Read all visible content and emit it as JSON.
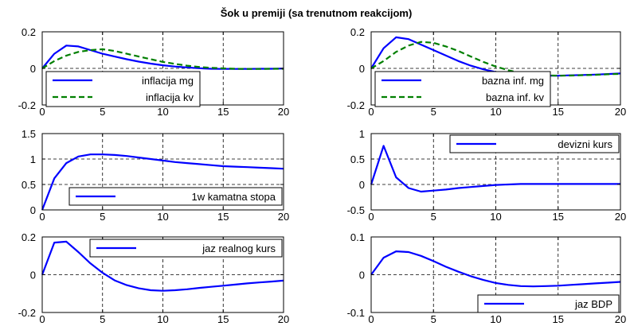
{
  "figure": {
    "title": "Šok u premiji (sa trenutnom reakcijom)"
  },
  "colors": {
    "solid": "#0000ff",
    "dashed": "#007f00",
    "grid": "#000000",
    "axes": "#000000"
  },
  "chart_data": [
    {
      "type": "line",
      "xlim": [
        0,
        20
      ],
      "ylim": [
        -0.2,
        0.2
      ],
      "xticks": [
        0,
        5,
        10,
        15,
        20
      ],
      "xtick_labels": [
        "0",
        "5",
        "10",
        "15",
        "20"
      ],
      "yticks": [
        -0.2,
        0,
        0.2
      ],
      "ytick_labels": [
        "-0.2",
        "0",
        "0.2"
      ],
      "grid": true,
      "legend_position": "bottom-left",
      "series": [
        {
          "name": "inflacija mg",
          "style": "solid",
          "color": "#0000ff",
          "x": [
            0,
            1,
            2,
            3,
            4,
            5,
            6,
            7,
            8,
            9,
            10,
            11,
            12,
            13,
            14,
            15,
            16,
            17,
            18,
            19,
            20
          ],
          "y": [
            0,
            0.08,
            0.125,
            0.12,
            0.1,
            0.08,
            0.065,
            0.05,
            0.037,
            0.026,
            0.017,
            0.01,
            0.005,
            0.001,
            -0.002,
            -0.003,
            -0.003,
            -0.003,
            -0.002,
            -0.002,
            -0.001
          ]
        },
        {
          "name": "inflacija kv",
          "style": "dashed",
          "color": "#007f00",
          "x": [
            0,
            1,
            2,
            3,
            4,
            5,
            6,
            7,
            8,
            9,
            10,
            11,
            12,
            13,
            14,
            15,
            16,
            17,
            18,
            19,
            20
          ],
          "y": [
            0,
            0.04,
            0.07,
            0.09,
            0.1,
            0.105,
            0.095,
            0.08,
            0.065,
            0.05,
            0.035,
            0.025,
            0.015,
            0.008,
            0.003,
            0,
            -0.002,
            -0.003,
            -0.003,
            -0.002,
            -0.002
          ]
        }
      ]
    },
    {
      "type": "line",
      "xlim": [
        0,
        20
      ],
      "ylim": [
        -0.2,
        0.2
      ],
      "xticks": [
        0,
        5,
        10,
        15,
        20
      ],
      "xtick_labels": [
        "0",
        "5",
        "10",
        "15",
        "20"
      ],
      "yticks": [
        -0.2,
        0,
        0.2
      ],
      "ytick_labels": [
        "-0.2",
        "0",
        "0.2"
      ],
      "grid": true,
      "legend_position": "bottom-left",
      "series": [
        {
          "name": "bazna inf. mg",
          "style": "solid",
          "color": "#0000ff",
          "x": [
            0,
            1,
            2,
            3,
            4,
            5,
            6,
            7,
            8,
            9,
            10,
            11,
            12,
            13,
            14,
            15,
            16,
            17,
            18,
            19,
            20
          ],
          "y": [
            0,
            0.11,
            0.17,
            0.16,
            0.13,
            0.1,
            0.07,
            0.04,
            0.015,
            -0.005,
            -0.02,
            -0.03,
            -0.036,
            -0.039,
            -0.04,
            -0.04,
            -0.038,
            -0.036,
            -0.034,
            -0.031,
            -0.028
          ]
        },
        {
          "name": "bazna inf. kv",
          "style": "dashed",
          "color": "#007f00",
          "x": [
            0,
            1,
            2,
            3,
            4,
            5,
            6,
            7,
            8,
            9,
            10,
            11,
            12,
            13,
            14,
            15,
            16,
            17,
            18,
            19,
            20
          ],
          "y": [
            0,
            0.04,
            0.09,
            0.125,
            0.145,
            0.14,
            0.12,
            0.095,
            0.065,
            0.035,
            0.01,
            -0.01,
            -0.025,
            -0.034,
            -0.038,
            -0.04,
            -0.039,
            -0.037,
            -0.035,
            -0.032,
            -0.03
          ]
        }
      ]
    },
    {
      "type": "line",
      "xlim": [
        0,
        20
      ],
      "ylim": [
        0,
        1.5
      ],
      "xticks": [
        0,
        5,
        10,
        15,
        20
      ],
      "xtick_labels": [
        "0",
        "5",
        "10",
        "15",
        "20"
      ],
      "yticks": [
        0,
        0.5,
        1,
        1.5
      ],
      "ytick_labels": [
        "0",
        "0.5",
        "1",
        "1.5"
      ],
      "grid": true,
      "legend_position": "bottom-right",
      "series": [
        {
          "name": "1w kamatna stopa",
          "style": "solid",
          "color": "#0000ff",
          "x": [
            0,
            1,
            2,
            3,
            4,
            5,
            6,
            7,
            8,
            9,
            10,
            11,
            12,
            13,
            14,
            15,
            16,
            17,
            18,
            19,
            20
          ],
          "y": [
            0,
            0.62,
            0.92,
            1.05,
            1.09,
            1.09,
            1.08,
            1.06,
            1.03,
            1.0,
            0.97,
            0.94,
            0.92,
            0.9,
            0.88,
            0.86,
            0.85,
            0.84,
            0.83,
            0.82,
            0.81
          ]
        }
      ]
    },
    {
      "type": "line",
      "xlim": [
        0,
        20
      ],
      "ylim": [
        -0.5,
        1
      ],
      "xticks": [
        0,
        5,
        10,
        15,
        20
      ],
      "xtick_labels": [
        "0",
        "5",
        "10",
        "15",
        "20"
      ],
      "yticks": [
        -0.5,
        0,
        0.5,
        1
      ],
      "ytick_labels": [
        "-0.5",
        "0",
        "0.5",
        "1"
      ],
      "grid": true,
      "legend_position": "top-right",
      "series": [
        {
          "name": "devizni kurs",
          "style": "solid",
          "color": "#0000ff",
          "x": [
            0,
            1,
            2,
            3,
            4,
            5,
            6,
            7,
            8,
            9,
            10,
            11,
            12,
            13,
            14,
            15,
            16,
            17,
            18,
            19,
            20
          ],
          "y": [
            0,
            0.76,
            0.14,
            -0.07,
            -0.14,
            -0.12,
            -0.1,
            -0.07,
            -0.05,
            -0.03,
            -0.01,
            0,
            0.01,
            0.01,
            0.01,
            0.01,
            0.01,
            0.01,
            0.01,
            0.01,
            0.01
          ]
        }
      ]
    },
    {
      "type": "line",
      "xlim": [
        0,
        20
      ],
      "ylim": [
        -0.2,
        0.2
      ],
      "xticks": [
        0,
        5,
        10,
        15,
        20
      ],
      "xtick_labels": [
        "0",
        "5",
        "10",
        "15",
        "20"
      ],
      "yticks": [
        -0.2,
        0,
        0.2
      ],
      "ytick_labels": [
        "-0.2",
        "0",
        "0.2"
      ],
      "grid": true,
      "legend_position": "top-right",
      "series": [
        {
          "name": "jaz realnog kurs",
          "style": "solid",
          "color": "#0000ff",
          "x": [
            0,
            1,
            2,
            3,
            4,
            5,
            6,
            7,
            8,
            9,
            10,
            11,
            12,
            13,
            14,
            15,
            16,
            17,
            18,
            19,
            20
          ],
          "y": [
            0,
            0.17,
            0.175,
            0.12,
            0.06,
            0.01,
            -0.03,
            -0.055,
            -0.072,
            -0.082,
            -0.085,
            -0.082,
            -0.077,
            -0.07,
            -0.064,
            -0.058,
            -0.052,
            -0.046,
            -0.041,
            -0.036,
            -0.031
          ]
        }
      ]
    },
    {
      "type": "line",
      "xlim": [
        0,
        20
      ],
      "ylim": [
        -0.1,
        0.1
      ],
      "xticks": [
        0,
        5,
        10,
        15,
        20
      ],
      "xtick_labels": [
        "0",
        "5",
        "10",
        "15",
        "20"
      ],
      "yticks": [
        -0.1,
        0,
        0.1
      ],
      "ytick_labels": [
        "-0.1",
        "0",
        "0.1"
      ],
      "grid": true,
      "legend_position": "bottom-right",
      "series": [
        {
          "name": "jaz BDP",
          "style": "solid",
          "color": "#0000ff",
          "x": [
            0,
            1,
            2,
            3,
            4,
            5,
            6,
            7,
            8,
            9,
            10,
            11,
            12,
            13,
            14,
            15,
            16,
            17,
            18,
            19,
            20
          ],
          "y": [
            0,
            0.045,
            0.062,
            0.06,
            0.05,
            0.036,
            0.021,
            0.008,
            -0.004,
            -0.014,
            -0.022,
            -0.027,
            -0.03,
            -0.031,
            -0.03,
            -0.029,
            -0.027,
            -0.025,
            -0.023,
            -0.021,
            -0.019
          ]
        }
      ]
    }
  ]
}
